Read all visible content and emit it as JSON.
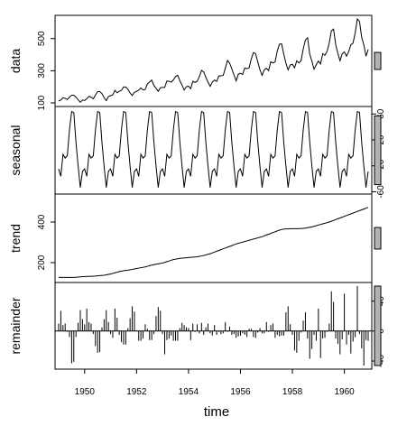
{
  "chart_data": {
    "type": "line",
    "xlabel": "time",
    "x_range": [
      1949,
      1961
    ],
    "x_ticks": [
      1950,
      1952,
      1954,
      1956,
      1958,
      1960
    ],
    "panels": [
      {
        "name": "data",
        "ylabel": "data",
        "ylim": [
          100,
          622
        ],
        "yticks": [
          100,
          300,
          500
        ],
        "tick_side": "left",
        "type": "line",
        "values": [
          112,
          118,
          132,
          129,
          121,
          135,
          148,
          148,
          136,
          119,
          104,
          118,
          115,
          126,
          141,
          135,
          125,
          149,
          170,
          170,
          158,
          133,
          114,
          140,
          145,
          150,
          178,
          163,
          172,
          178,
          199,
          199,
          184,
          162,
          146,
          166,
          171,
          180,
          193,
          181,
          183,
          218,
          230,
          242,
          209,
          191,
          172,
          194,
          196,
          196,
          236,
          235,
          229,
          243,
          264,
          272,
          237,
          211,
          180,
          201,
          204,
          188,
          235,
          227,
          234,
          264,
          302,
          293,
          259,
          229,
          203,
          229,
          242,
          233,
          267,
          269,
          270,
          315,
          364,
          347,
          312,
          274,
          237,
          278,
          284,
          277,
          317,
          313,
          318,
          374,
          413,
          405,
          355,
          306,
          271,
          306,
          315,
          301,
          356,
          348,
          355,
          422,
          465,
          467,
          404,
          347,
          305,
          336,
          340,
          318,
          362,
          348,
          363,
          435,
          491,
          505,
          404,
          359,
          310,
          337,
          360,
          342,
          406,
          396,
          420,
          472,
          548,
          559,
          463,
          407,
          362,
          405,
          417,
          391,
          419,
          461,
          472,
          535,
          622,
          606,
          508,
          461,
          390,
          432
        ]
      },
      {
        "name": "seasonal",
        "ylabel": "seasonal",
        "ylim": [
          -58,
          66
        ],
        "yticks": [
          -60,
          -20,
          20,
          60
        ],
        "tick_side": "right",
        "type": "line",
        "pattern": [
          -24.7,
          -36.2,
          -2.2,
          -8.0,
          -4.5,
          35.4,
          63.8,
          62.3,
          16.5,
          -20.6,
          -53.6,
          -28.6
        ]
      },
      {
        "name": "trend",
        "ylabel": "trend",
        "ylim": [
          120,
          520
        ],
        "yticks": [
          200,
          400
        ],
        "tick_side": "left",
        "type": "line",
        "values": [
          127,
          127,
          127,
          127,
          127,
          127,
          127,
          127,
          128,
          129,
          130,
          131,
          131,
          132,
          132,
          133,
          133,
          134,
          135,
          136,
          137,
          138,
          140,
          142,
          144,
          147,
          150,
          153,
          156,
          158,
          160,
          162,
          163,
          165,
          167,
          169,
          171,
          173,
          175,
          177,
          179,
          182,
          185,
          188,
          190,
          192,
          194,
          196,
          198,
          201,
          205,
          208,
          212,
          215,
          217,
          219,
          221,
          222,
          223,
          224,
          225,
          226,
          227,
          228,
          229,
          231,
          233,
          235,
          238,
          241,
          244,
          248,
          252,
          256,
          260,
          264,
          268,
          272,
          276,
          280,
          284,
          288,
          292,
          295,
          298,
          301,
          304,
          307,
          310,
          313,
          316,
          319,
          322,
          325,
          328,
          332,
          336,
          340,
          344,
          348,
          352,
          356,
          360,
          363,
          365,
          366,
          366,
          367,
          367,
          367,
          367,
          368,
          368,
          369,
          370,
          372,
          374,
          376,
          379,
          382,
          385,
          388,
          391,
          394,
          397,
          400,
          404,
          408,
          412,
          416,
          420,
          424,
          428,
          432,
          436,
          440,
          444,
          448,
          452,
          456,
          460,
          464,
          468,
          472
        ]
      },
      {
        "name": "remainder",
        "ylabel": "remainder",
        "ylim": [
          -46,
          60
        ],
        "yticks": [
          -40,
          0,
          40
        ],
        "tick_side": "right",
        "type": "bar",
        "values": [
          10,
          27,
          8,
          10,
          -1,
          -8,
          -43,
          -41,
          -8,
          11,
          28,
          16,
          9,
          30,
          12,
          10,
          -4,
          -20,
          -29,
          -28,
          5,
          16,
          28,
          12,
          -4,
          -9,
          30,
          18,
          -5,
          -15,
          -18,
          -18,
          4,
          17,
          33,
          26,
          1,
          -13,
          -13,
          -10,
          9,
          3,
          -12,
          -12,
          -4,
          20,
          32,
          27,
          -4,
          -31,
          -12,
          -10,
          -6,
          -13,
          -13,
          -13,
          4,
          11,
          8,
          5,
          4,
          -12,
          10,
          -1,
          9,
          -3,
          11,
          -5,
          5,
          10,
          -3,
          -6,
          8,
          -5,
          -1,
          -4,
          -3,
          12,
          -1,
          6,
          -5,
          -4,
          -9,
          -7,
          -6,
          -3,
          -5,
          -8,
          3,
          3,
          -8,
          -9,
          -2,
          4,
          -3,
          -3,
          12,
          -1,
          8,
          10,
          -9,
          -5,
          -7,
          -6,
          -6,
          25,
          33,
          9,
          -5,
          -26,
          -29,
          -13,
          -2,
          14,
          25,
          -10,
          -37,
          -24,
          -5,
          -13,
          30,
          -36,
          -10,
          -9,
          -1,
          10,
          53,
          39,
          -10,
          -17,
          -31,
          -11,
          50,
          -18,
          -5,
          -30,
          -14,
          -8,
          60,
          -4,
          -23,
          -46,
          -12,
          -13
        ]
      }
    ]
  }
}
